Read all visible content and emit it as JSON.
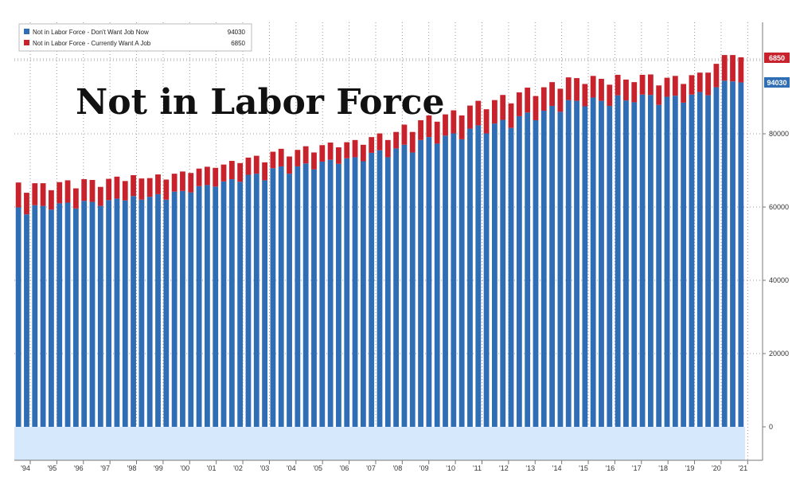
{
  "chart_data": {
    "type": "bar",
    "stacked": true,
    "title": "Not in Labor Force",
    "xlabel": "",
    "ylabel": "",
    "ylim": [
      0,
      110000
    ],
    "grid": true,
    "legend_position": "top-left",
    "colors": {
      "dont_want": "#2f6eb5",
      "want": "#c8232c",
      "baseline_band": "#d6e8fb",
      "grid": "#9a9a9a"
    },
    "x_ticks": [
      "'94",
      "'95",
      "'96",
      "'97",
      "'98",
      "'99",
      "'00",
      "'01",
      "'02",
      "'03",
      "'04",
      "'05",
      "'06",
      "'07",
      "'08",
      "'09",
      "'10",
      "'11",
      "'12",
      "'13",
      "'14",
      "'15",
      "'16",
      "'17",
      "'18",
      "'19",
      "'20",
      "'21"
    ],
    "y_ticks": [
      "0",
      "20000",
      "40000",
      "60000",
      "80000"
    ],
    "y_tick_values": [
      0,
      20000,
      40000,
      60000,
      80000
    ],
    "last_value_tags": {
      "dont_want": "94030",
      "want": "6850"
    },
    "legend": [
      {
        "label": "Not in Labor Force - Don't Want Job Now",
        "value": "94030",
        "color": "#2f6eb5"
      },
      {
        "label": "Not in Labor Force - Currently Want A Job",
        "value": "6850",
        "color": "#c8232c"
      }
    ],
    "series": [
      {
        "name": "Not in Labor Force - Don't Want Job Now",
        "values": [
          59900,
          58000,
          60500,
          60300,
          59300,
          61000,
          61200,
          59600,
          61700,
          61400,
          60300,
          61900,
          62300,
          61800,
          63000,
          62000,
          62800,
          63500,
          62000,
          64200,
          64400,
          64000,
          65700,
          66000,
          65600,
          67000,
          67600,
          66900,
          68800,
          69100,
          67300,
          70600,
          71100,
          69100,
          71100,
          71900,
          70300,
          72400,
          72900,
          71800,
          73300,
          73600,
          72500,
          74800,
          75500,
          73600,
          76000,
          77000,
          74900,
          78300,
          79100,
          77300,
          79500,
          80100,
          78500,
          81400,
          82300,
          80100,
          82800,
          83800,
          81600,
          84800,
          85800,
          83700,
          86300,
          87600,
          86000,
          89200,
          89000,
          87500,
          89900,
          89000,
          87600,
          90500,
          89100,
          88600,
          90700,
          90600,
          87900,
          90100,
          90400,
          88500,
          90700,
          91400,
          90500,
          92700,
          94500,
          94300,
          94030
        ]
      },
      {
        "name": "Not in Labor Force - Currently Want A Job",
        "values": [
          6800,
          5900,
          6000,
          6200,
          5300,
          5800,
          6100,
          5500,
          5900,
          6000,
          5200,
          5800,
          6000,
          5300,
          5700,
          5800,
          5100,
          5400,
          5500,
          4900,
          5300,
          5300,
          4800,
          5000,
          5100,
          4600,
          5000,
          5100,
          4700,
          4900,
          4900,
          4500,
          4800,
          4700,
          4500,
          4700,
          4600,
          4500,
          4700,
          4500,
          4400,
          4700,
          4500,
          4300,
          4600,
          4700,
          4500,
          5500,
          5600,
          5400,
          5900,
          6000,
          5800,
          6300,
          6500,
          6300,
          6700,
          6600,
          6400,
          6800,
          6700,
          6500,
          6800,
          6600,
          6400,
          6500,
          6300,
          6200,
          6200,
          6100,
          5900,
          6000,
          5800,
          5600,
          5700,
          5500,
          5400,
          5600,
          5300,
          5200,
          5400,
          5100,
          5300,
          5300,
          6200,
          6400,
          7000,
          7200,
          6850
        ]
      }
    ]
  }
}
